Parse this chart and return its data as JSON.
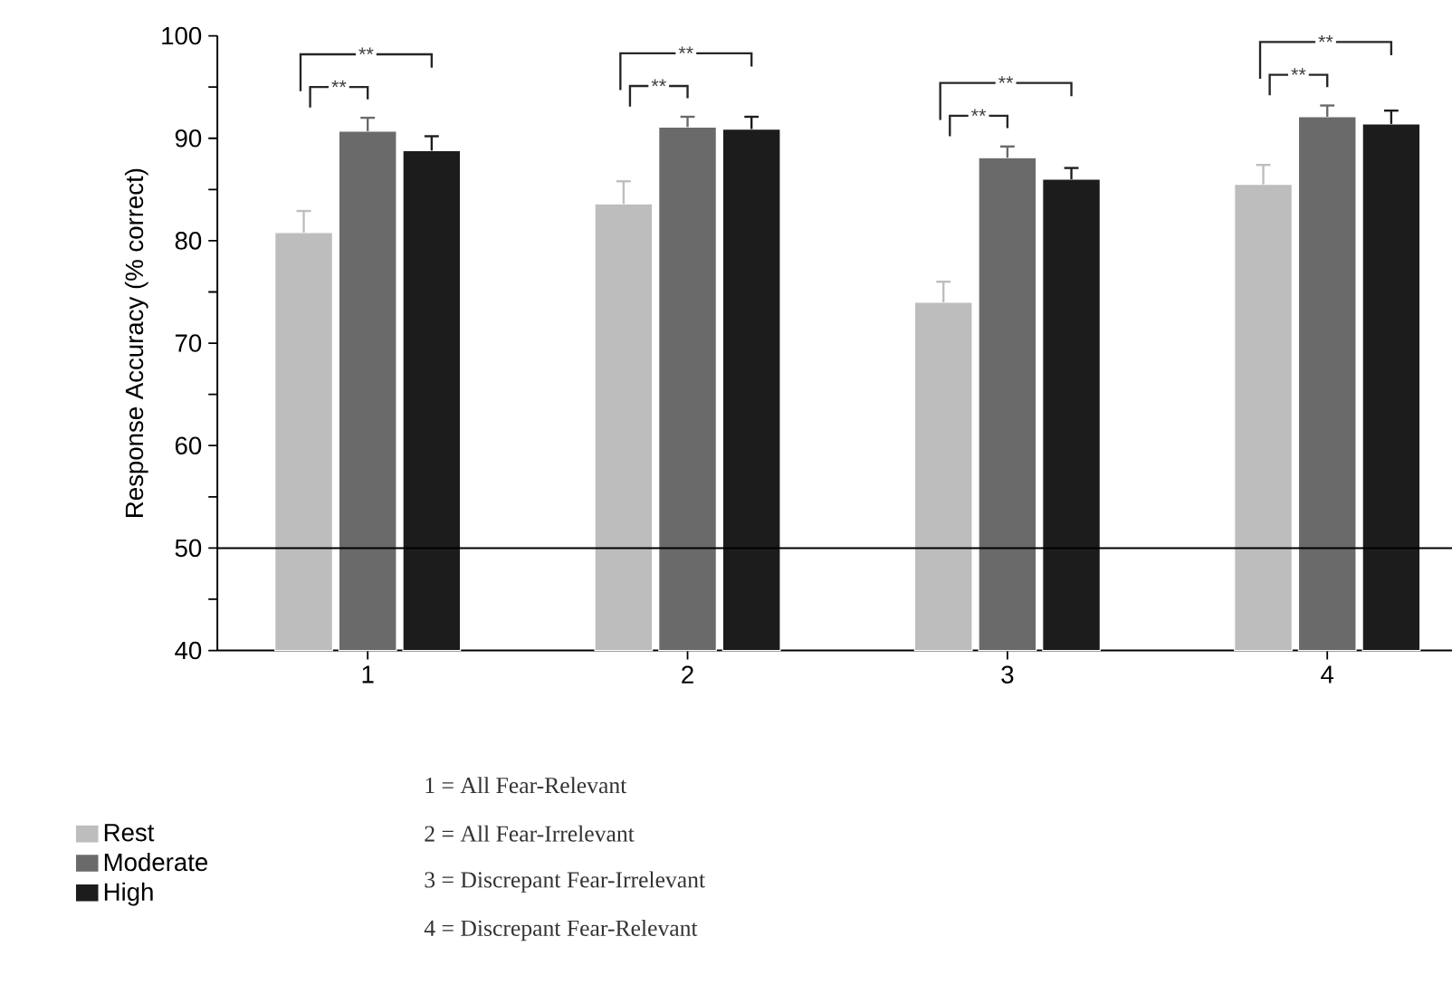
{
  "chart_data": {
    "type": "bar",
    "ylabel": "Response Accuracy (% correct)",
    "categories": [
      "1",
      "2",
      "3",
      "4"
    ],
    "series": [
      {
        "name": "Rest",
        "color": "#bdbdbd",
        "values": [
          80.8,
          83.6,
          74.0,
          85.5
        ],
        "errors": [
          2.1,
          2.2,
          2.0,
          1.9
        ]
      },
      {
        "name": "Moderate",
        "color": "#6a6a6a",
        "values": [
          90.7,
          91.1,
          88.1,
          92.1
        ],
        "errors": [
          1.3,
          1.0,
          1.1,
          1.1
        ]
      },
      {
        "name": "High",
        "color": "#1c1c1c",
        "values": [
          88.8,
          90.9,
          86.0,
          91.4
        ],
        "errors": [
          1.4,
          1.2,
          1.1,
          1.3
        ]
      }
    ],
    "ylim": [
      40,
      100
    ],
    "yticks": [
      40,
      {
        "value": 45,
        "label": null
      },
      50,
      {
        "value": 55,
        "label": null
      },
      60,
      {
        "value": 65,
        "label": null
      },
      70,
      {
        "value": 75,
        "label": null
      },
      80,
      {
        "value": 85,
        "label": null
      },
      90,
      {
        "value": 95,
        "label": null
      },
      100
    ],
    "ref_lines": [
      {
        "axis": "y",
        "value": 50,
        "color": "#000000"
      }
    ],
    "legend": "bottom left",
    "annotations": [
      "**",
      "**",
      "**",
      "**",
      "**",
      "**",
      "**",
      "**",
      "1 = All Fear-Relevant",
      "2 = All Fear-Irrelevant",
      "3 = Discrepant Fear-Irrelevant",
      "4 = Discrepant Fear-Relevant"
    ]
  }
}
